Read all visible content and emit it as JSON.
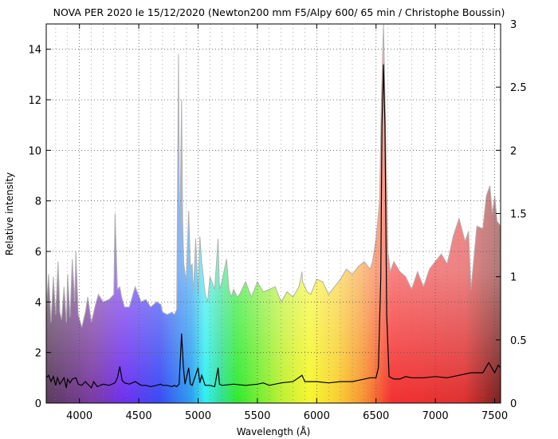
{
  "chart_data": {
    "type": "area",
    "title": "NOVA PER 2020 le 15/12/2020 (Newton200 mm F5/Alpy 600/ 65 min / Christophe Boussin)",
    "xlabel": "Wavelength (Å)",
    "ylabel": "Relative intensity",
    "xlim": [
      3720,
      7550
    ],
    "ylim": [
      0,
      15
    ],
    "y2lim": [
      0,
      3
    ],
    "grid": true,
    "legend": "none",
    "x_ticks": [
      4000,
      4500,
      5000,
      5500,
      6000,
      6500,
      7000,
      7500
    ],
    "y_ticks": [
      0,
      2,
      4,
      6,
      8,
      10,
      12,
      14
    ],
    "y2_ticks": [
      0,
      0.5,
      1,
      1.5,
      2,
      2.5,
      3
    ],
    "series": [
      {
        "axis": "left",
        "color": "#b0b0b0",
        "fill": "rainbow",
        "x": [
          3720,
          3740,
          3760,
          3780,
          3800,
          3820,
          3835,
          3850,
          3870,
          3890,
          3900,
          3920,
          3940,
          3960,
          3970,
          3990,
          4020,
          4050,
          4070,
          4101,
          4130,
          4160,
          4200,
          4250,
          4290,
          4300,
          4320,
          4340,
          4355,
          4380,
          4420,
          4470,
          4520,
          4560,
          4600,
          4650,
          4686,
          4700,
          4740,
          4780,
          4800,
          4820,
          4835,
          4845,
          4861,
          4870,
          4880,
          4900,
          4921,
          4935,
          4950,
          4960,
          4980,
          5000,
          5015,
          5030,
          5060,
          5080,
          5100,
          5140,
          5169,
          5180,
          5200,
          5240,
          5260,
          5280,
          5300,
          5330,
          5350,
          5400,
          5450,
          5500,
          5550,
          5600,
          5650,
          5700,
          5750,
          5800,
          5850,
          5876,
          5880,
          5920,
          5950,
          6000,
          6050,
          6100,
          6150,
          6200,
          6250,
          6300,
          6350,
          6400,
          6450,
          6470,
          6500,
          6530,
          6545,
          6563,
          6580,
          6600,
          6620,
          6650,
          6700,
          6750,
          6800,
          6850,
          6900,
          6950,
          7000,
          7050,
          7100,
          7150,
          7200,
          7250,
          7280,
          7300,
          7350,
          7400,
          7430,
          7460,
          7480,
          7500,
          7520,
          7550
        ],
        "y": [
          3.8,
          5.1,
          3.2,
          5.0,
          3.5,
          5.6,
          3.6,
          3.3,
          4.6,
          3.2,
          5.1,
          3.4,
          5.7,
          4.0,
          6.0,
          3.5,
          3.0,
          3.6,
          4.2,
          3.2,
          3.8,
          4.3,
          4.0,
          4.1,
          4.3,
          7.5,
          4.5,
          4.6,
          4.2,
          3.8,
          3.8,
          4.6,
          4.0,
          4.1,
          3.8,
          4.0,
          3.9,
          3.6,
          3.5,
          3.6,
          3.5,
          3.7,
          13.8,
          6.0,
          12.0,
          7.2,
          5.5,
          4.8,
          7.6,
          5.4,
          5.5,
          4.3,
          6.5,
          4.3,
          6.6,
          5.6,
          4.3,
          4.0,
          5.0,
          4.5,
          6.5,
          4.5,
          4.8,
          5.7,
          4.5,
          4.2,
          4.5,
          4.2,
          4.3,
          4.8,
          4.2,
          4.8,
          4.4,
          4.5,
          4.6,
          4.0,
          4.4,
          4.2,
          4.6,
          5.2,
          4.8,
          4.4,
          4.3,
          4.9,
          4.8,
          4.3,
          4.6,
          4.9,
          5.3,
          5.1,
          5.4,
          5.6,
          5.3,
          5.6,
          6.5,
          8.0,
          12.0,
          15.0,
          11.0,
          6.0,
          5.2,
          5.6,
          5.2,
          5.0,
          4.5,
          5.2,
          4.6,
          5.3,
          5.6,
          5.9,
          5.5,
          6.6,
          7.3,
          6.4,
          6.8,
          4.5,
          7.0,
          6.9,
          8.2,
          8.6,
          7.5,
          8.2,
          7.2,
          7.0
        ]
      },
      {
        "axis": "right",
        "color": "#000000",
        "x": [
          3720,
          3740,
          3760,
          3780,
          3800,
          3815,
          3835,
          3850,
          3870,
          3889,
          3900,
          3920,
          3940,
          3970,
          3990,
          4020,
          4050,
          4101,
          4120,
          4150,
          4200,
          4250,
          4300,
          4320,
          4340,
          4360,
          4380,
          4420,
          4470,
          4520,
          4560,
          4600,
          4650,
          4686,
          4700,
          4740,
          4780,
          4800,
          4820,
          4840,
          4861,
          4875,
          4890,
          4921,
          4935,
          4950,
          5000,
          5015,
          5030,
          5060,
          5100,
          5140,
          5169,
          5180,
          5200,
          5300,
          5400,
          5500,
          5550,
          5600,
          5700,
          5800,
          5876,
          5900,
          6000,
          6100,
          6200,
          6300,
          6400,
          6450,
          6500,
          6520,
          6540,
          6550,
          6563,
          6575,
          6590,
          6610,
          6650,
          6700,
          6750,
          6800,
          6900,
          7000,
          7100,
          7200,
          7300,
          7400,
          7450,
          7500,
          7530,
          7550
        ],
        "y": [
          0.2,
          0.22,
          0.17,
          0.21,
          0.14,
          0.2,
          0.15,
          0.17,
          0.2,
          0.12,
          0.19,
          0.16,
          0.19,
          0.2,
          0.15,
          0.14,
          0.17,
          0.12,
          0.17,
          0.13,
          0.15,
          0.14,
          0.16,
          0.2,
          0.29,
          0.18,
          0.16,
          0.15,
          0.17,
          0.14,
          0.14,
          0.13,
          0.14,
          0.15,
          0.14,
          0.14,
          0.13,
          0.14,
          0.13,
          0.15,
          0.55,
          0.3,
          0.15,
          0.28,
          0.15,
          0.14,
          0.28,
          0.16,
          0.22,
          0.14,
          0.14,
          0.13,
          0.28,
          0.15,
          0.14,
          0.15,
          0.14,
          0.15,
          0.16,
          0.14,
          0.16,
          0.17,
          0.22,
          0.17,
          0.17,
          0.16,
          0.17,
          0.17,
          0.19,
          0.2,
          0.2,
          0.28,
          1.0,
          2.2,
          2.68,
          2.2,
          0.7,
          0.21,
          0.19,
          0.19,
          0.21,
          0.2,
          0.2,
          0.21,
          0.2,
          0.22,
          0.24,
          0.24,
          0.32,
          0.24,
          0.3,
          0.28
        ]
      }
    ]
  }
}
